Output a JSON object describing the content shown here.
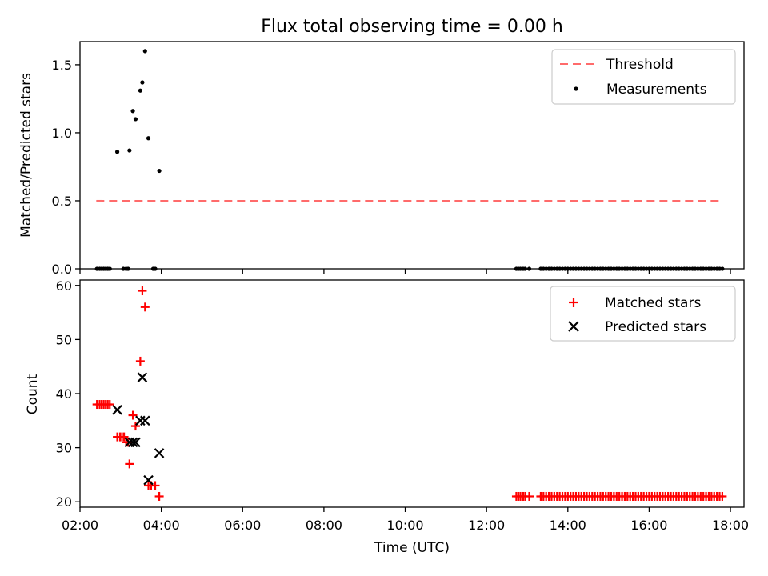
{
  "chart_data": [
    {
      "type": "scatter",
      "title": "Flux total observing time = 0.00 h",
      "xlabel": "",
      "ylabel": "Matched/Predicted stars",
      "xlim": [
        "02:00",
        "18:20"
      ],
      "ylim": [
        0,
        1.67
      ],
      "yticks": [
        "0.0",
        "0.5",
        "1.0",
        "1.5"
      ],
      "grid": false,
      "legend_position": "top-right",
      "legend": [
        "Threshold",
        "Measurements"
      ],
      "threshold": {
        "name": "Threshold",
        "color": "#ff6b6b",
        "style": "dashed",
        "x": [
          "02:24",
          "17:48"
        ],
        "y": 0.5
      },
      "measurements": {
        "name": "Measurements",
        "color": "#000000",
        "points": [
          [
            "02:25",
            0
          ],
          [
            "02:29",
            0
          ],
          [
            "02:32",
            0
          ],
          [
            "02:35",
            0
          ],
          [
            "02:38",
            0
          ],
          [
            "02:41",
            0
          ],
          [
            "02:44",
            0
          ],
          [
            "02:55",
            0.86
          ],
          [
            "03:04",
            0
          ],
          [
            "03:08",
            0
          ],
          [
            "03:11",
            0
          ],
          [
            "03:13",
            0.87
          ],
          [
            "03:18",
            1.16
          ],
          [
            "03:22",
            1.1
          ],
          [
            "03:29",
            1.31
          ],
          [
            "03:32",
            1.37
          ],
          [
            "03:36",
            1.6
          ],
          [
            "03:41",
            0.96
          ],
          [
            "03:48",
            0
          ],
          [
            "03:51",
            0
          ],
          [
            "03:57",
            0.72
          ],
          [
            "12:44",
            0
          ],
          [
            "12:47",
            0
          ],
          [
            "12:50",
            0
          ],
          [
            "12:54",
            0
          ],
          [
            "12:57",
            0
          ],
          [
            "13:03",
            0
          ],
          [
            "13:20",
            0
          ],
          [
            "13:24",
            0
          ],
          [
            "13:28",
            0
          ],
          [
            "13:32",
            0
          ],
          [
            "13:36",
            0
          ],
          [
            "13:40",
            0
          ],
          [
            "13:44",
            0
          ],
          [
            "13:48",
            0
          ],
          [
            "13:52",
            0
          ],
          [
            "13:56",
            0
          ],
          [
            "14:00",
            0
          ],
          [
            "14:04",
            0
          ],
          [
            "14:08",
            0
          ],
          [
            "14:12",
            0
          ],
          [
            "14:16",
            0
          ],
          [
            "14:20",
            0
          ],
          [
            "14:24",
            0
          ],
          [
            "14:28",
            0
          ],
          [
            "14:32",
            0
          ],
          [
            "14:36",
            0
          ],
          [
            "14:40",
            0
          ],
          [
            "14:44",
            0
          ],
          [
            "14:48",
            0
          ],
          [
            "14:52",
            0
          ],
          [
            "14:56",
            0
          ],
          [
            "15:00",
            0
          ],
          [
            "15:04",
            0
          ],
          [
            "15:08",
            0
          ],
          [
            "15:12",
            0
          ],
          [
            "15:16",
            0
          ],
          [
            "15:20",
            0
          ],
          [
            "15:24",
            0
          ],
          [
            "15:28",
            0
          ],
          [
            "15:32",
            0
          ],
          [
            "15:36",
            0
          ],
          [
            "15:40",
            0
          ],
          [
            "15:44",
            0
          ],
          [
            "15:48",
            0
          ],
          [
            "15:52",
            0
          ],
          [
            "15:56",
            0
          ],
          [
            "16:00",
            0
          ],
          [
            "16:04",
            0
          ],
          [
            "16:08",
            0
          ],
          [
            "16:12",
            0
          ],
          [
            "16:16",
            0
          ],
          [
            "16:20",
            0
          ],
          [
            "16:24",
            0
          ],
          [
            "16:28",
            0
          ],
          [
            "16:32",
            0
          ],
          [
            "16:36",
            0
          ],
          [
            "16:40",
            0
          ],
          [
            "16:44",
            0
          ],
          [
            "16:48",
            0
          ],
          [
            "16:52",
            0
          ],
          [
            "16:56",
            0
          ],
          [
            "17:00",
            0
          ],
          [
            "17:04",
            0
          ],
          [
            "17:08",
            0
          ],
          [
            "17:12",
            0
          ],
          [
            "17:16",
            0
          ],
          [
            "17:20",
            0
          ],
          [
            "17:24",
            0
          ],
          [
            "17:28",
            0
          ],
          [
            "17:32",
            0
          ],
          [
            "17:36",
            0
          ],
          [
            "17:40",
            0
          ],
          [
            "17:44",
            0
          ],
          [
            "17:48",
            0
          ]
        ]
      }
    },
    {
      "type": "scatter",
      "title": "",
      "xlabel": "Time (UTC)",
      "ylabel": "Count",
      "xlim": [
        "02:00",
        "18:20"
      ],
      "ylim": [
        19.0,
        61.0
      ],
      "xticks": [
        "02:00",
        "04:00",
        "06:00",
        "08:00",
        "10:00",
        "12:00",
        "14:00",
        "16:00",
        "18:00"
      ],
      "yticks": [
        "20",
        "30",
        "40",
        "50",
        "60"
      ],
      "grid": false,
      "legend_position": "top-right",
      "legend": [
        "Matched stars",
        "Predicted stars"
      ],
      "series": [
        {
          "name": "Matched stars",
          "marker": "+",
          "color": "#ff0000",
          "points": [
            [
              "02:25",
              38
            ],
            [
              "02:29",
              38
            ],
            [
              "02:32",
              38
            ],
            [
              "02:35",
              38
            ],
            [
              "02:38",
              38
            ],
            [
              "02:41",
              38
            ],
            [
              "02:44",
              38
            ],
            [
              "02:55",
              32
            ],
            [
              "02:59",
              32
            ],
            [
              "03:02",
              32
            ],
            [
              "03:05",
              32
            ],
            [
              "03:08",
              31
            ],
            [
              "03:11",
              31
            ],
            [
              "03:13",
              27
            ],
            [
              "03:18",
              36
            ],
            [
              "03:22",
              34
            ],
            [
              "03:29",
              46
            ],
            [
              "03:32",
              59
            ],
            [
              "03:36",
              56
            ],
            [
              "03:41",
              23
            ],
            [
              "03:45",
              23
            ],
            [
              "03:51",
              23
            ],
            [
              "03:57",
              21
            ],
            [
              "12:44",
              21
            ],
            [
              "12:47",
              21
            ],
            [
              "12:50",
              21
            ],
            [
              "12:54",
              21
            ],
            [
              "12:57",
              21
            ],
            [
              "13:03",
              21
            ],
            [
              "13:20",
              21
            ],
            [
              "13:24",
              21
            ],
            [
              "13:28",
              21
            ],
            [
              "13:32",
              21
            ],
            [
              "13:36",
              21
            ],
            [
              "13:40",
              21
            ],
            [
              "13:44",
              21
            ],
            [
              "13:48",
              21
            ],
            [
              "13:52",
              21
            ],
            [
              "13:56",
              21
            ],
            [
              "14:00",
              21
            ],
            [
              "14:04",
              21
            ],
            [
              "14:08",
              21
            ],
            [
              "14:12",
              21
            ],
            [
              "14:16",
              21
            ],
            [
              "14:20",
              21
            ],
            [
              "14:24",
              21
            ],
            [
              "14:28",
              21
            ],
            [
              "14:32",
              21
            ],
            [
              "14:36",
              21
            ],
            [
              "14:40",
              21
            ],
            [
              "14:44",
              21
            ],
            [
              "14:48",
              21
            ],
            [
              "14:52",
              21
            ],
            [
              "14:56",
              21
            ],
            [
              "15:00",
              21
            ],
            [
              "15:04",
              21
            ],
            [
              "15:08",
              21
            ],
            [
              "15:12",
              21
            ],
            [
              "15:16",
              21
            ],
            [
              "15:20",
              21
            ],
            [
              "15:24",
              21
            ],
            [
              "15:28",
              21
            ],
            [
              "15:32",
              21
            ],
            [
              "15:36",
              21
            ],
            [
              "15:40",
              21
            ],
            [
              "15:44",
              21
            ],
            [
              "15:48",
              21
            ],
            [
              "15:52",
              21
            ],
            [
              "15:56",
              21
            ],
            [
              "16:00",
              21
            ],
            [
              "16:04",
              21
            ],
            [
              "16:08",
              21
            ],
            [
              "16:12",
              21
            ],
            [
              "16:16",
              21
            ],
            [
              "16:20",
              21
            ],
            [
              "16:24",
              21
            ],
            [
              "16:28",
              21
            ],
            [
              "16:32",
              21
            ],
            [
              "16:36",
              21
            ],
            [
              "16:40",
              21
            ],
            [
              "16:44",
              21
            ],
            [
              "16:48",
              21
            ],
            [
              "16:52",
              21
            ],
            [
              "16:56",
              21
            ],
            [
              "17:00",
              21
            ],
            [
              "17:04",
              21
            ],
            [
              "17:08",
              21
            ],
            [
              "17:12",
              21
            ],
            [
              "17:16",
              21
            ],
            [
              "17:20",
              21
            ],
            [
              "17:24",
              21
            ],
            [
              "17:28",
              21
            ],
            [
              "17:32",
              21
            ],
            [
              "17:36",
              21
            ],
            [
              "17:40",
              21
            ],
            [
              "17:44",
              21
            ],
            [
              "17:48",
              21
            ]
          ]
        },
        {
          "name": "Predicted stars",
          "marker": "x",
          "color": "#000000",
          "points": [
            [
              "02:55",
              37
            ],
            [
              "03:13",
              31
            ],
            [
              "03:18",
              31
            ],
            [
              "03:22",
              31
            ],
            [
              "03:29",
              35
            ],
            [
              "03:32",
              43
            ],
            [
              "03:36",
              35
            ],
            [
              "03:41",
              24
            ],
            [
              "03:57",
              29
            ]
          ]
        }
      ]
    }
  ]
}
